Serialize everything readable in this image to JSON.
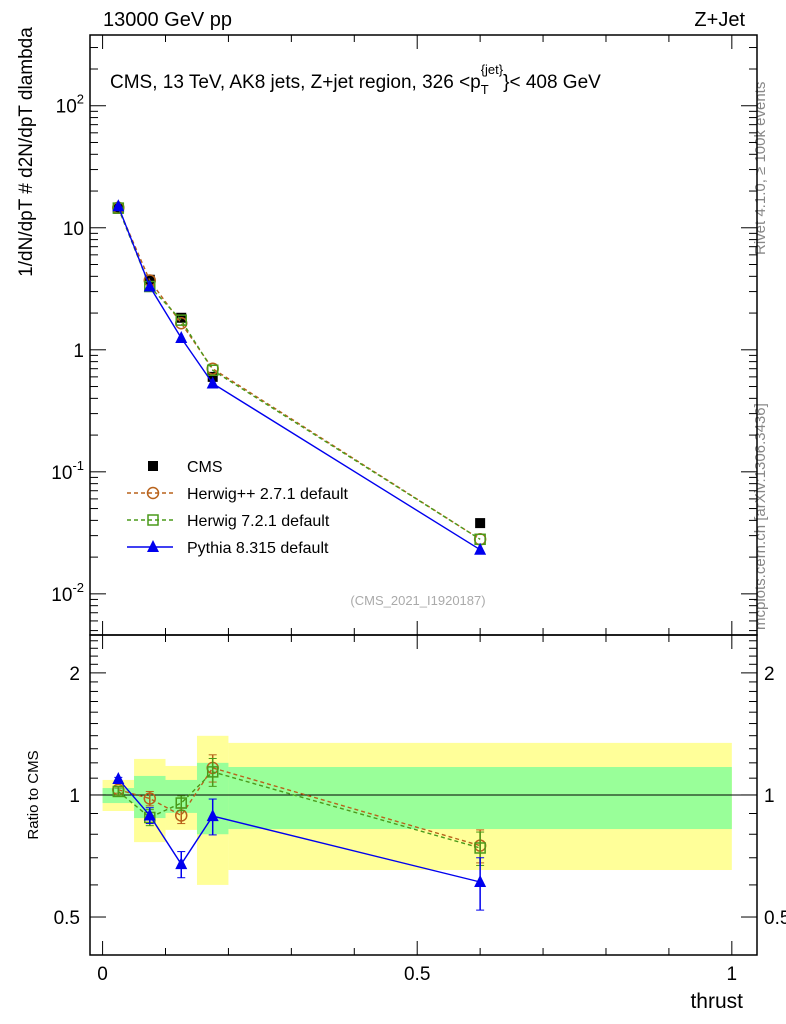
{
  "header": {
    "left": "13000 GeV pp",
    "right": "Z+Jet"
  },
  "side": {
    "rivet": "Rivet 4.1.0, ≥ 100k events",
    "mcplots": "mcplots.cern.ch [arXiv:1306.3436]"
  },
  "chart_data": [
    {
      "type": "line",
      "title": "CMS, 13 TeV, AK8 jets, Z+jet region, 326 <p_T^{jet}< 408 GeV",
      "watermark": "(CMS_2021_I1920187)",
      "ylabel": "1/dN/dpT # d2N/dpT dlambda",
      "yscale": "log",
      "ylim": [
        0.0046,
        380
      ],
      "yticks": [
        {
          "v": 0.01,
          "label": "10^-2"
        },
        {
          "v": 0.1,
          "label": "10^-1"
        },
        {
          "v": 1,
          "label": "1"
        },
        {
          "v": 10,
          "label": "10"
        },
        {
          "v": 100,
          "label": "10^2"
        }
      ],
      "xlim": [
        -0.02,
        1.04
      ],
      "x": [
        0.025,
        0.075,
        0.125,
        0.175,
        0.6
      ],
      "bin_edges": [
        0,
        0.05,
        0.1,
        0.15,
        0.2,
        1.0
      ],
      "legend_position": "bottom-left",
      "series": [
        {
          "name": "CMS",
          "color": "#000000",
          "marker": "square",
          "values": [
            14.3,
            3.75,
            1.83,
            0.6,
            0.038
          ]
        },
        {
          "name": "Herwig++ 2.7.1 default",
          "color": "#b8621b",
          "marker": "open-circle",
          "dashed": true,
          "values": [
            14.6,
            3.7,
            1.65,
            0.7,
            0.028
          ]
        },
        {
          "name": "Herwig 7.2.1 default",
          "color": "#4a9a1a",
          "marker": "open-square",
          "dashed": true,
          "values": [
            14.5,
            3.3,
            1.75,
            0.68,
            0.028
          ]
        },
        {
          "name": "Pythia 8.315 default",
          "color": "#0000ee",
          "marker": "triangle",
          "values": [
            15.0,
            3.3,
            1.25,
            0.53,
            0.023
          ]
        }
      ]
    },
    {
      "type": "line",
      "ylabel": "Ratio to CMS",
      "xlabel": "thrust",
      "yscale": "log",
      "ylim": [
        0.403,
        2.48
      ],
      "yticks": [
        {
          "v": 0.5,
          "label": "0.5"
        },
        {
          "v": 1,
          "label": "1"
        },
        {
          "v": 2,
          "label": "2"
        }
      ],
      "xticks": [
        {
          "v": 0,
          "label": "0"
        },
        {
          "v": 0.5,
          "label": "0.5"
        },
        {
          "v": 1,
          "label": "1"
        }
      ],
      "bands": {
        "green": [
          [
            0.955,
            1.04
          ],
          [
            0.877,
            1.114
          ],
          [
            0.903,
            1.089
          ],
          [
            0.8,
            1.2
          ],
          [
            0.824,
            1.172
          ]
        ],
        "yellow": [
          [
            0.913,
            1.089
          ],
          [
            0.765,
            1.227
          ],
          [
            0.82,
            1.179
          ],
          [
            0.6,
            1.399
          ],
          [
            0.653,
            1.344
          ]
        ]
      },
      "series": [
        {
          "name": "Herwig++ 2.7.1 default",
          "values": [
            1.03,
            0.98,
            0.89,
            1.166,
            0.75
          ],
          "err": [
            0.02,
            0.04,
            0.04,
            0.09,
            0.07
          ]
        },
        {
          "name": "Herwig 7.2.1 default",
          "values": [
            1.02,
            0.88,
            0.955,
            1.14,
            0.74
          ],
          "err": [
            0.02,
            0.04,
            0.04,
            0.09,
            0.07
          ]
        },
        {
          "name": "Pythia 8.315 default",
          "values": [
            1.095,
            0.89,
            0.675,
            0.887,
            0.61
          ],
          "err": [
            0.01,
            0.04,
            0.05,
            0.09,
            0.09
          ]
        }
      ]
    }
  ]
}
